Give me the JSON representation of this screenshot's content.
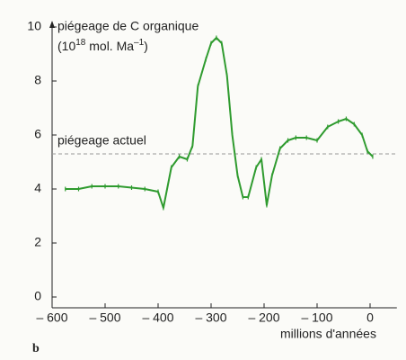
{
  "chart_data": {
    "type": "line",
    "title": "piégeage de C organique",
    "y_unit_parts": [
      "(10",
      "18",
      " mol. Ma",
      "–1",
      ")"
    ],
    "annotation": "piégeage actuel",
    "reference_value": 5.3,
    "xlabel": "millions d'années",
    "panel_label": "b",
    "x": [
      -575,
      -550,
      -525,
      -500,
      -475,
      -450,
      -425,
      -400,
      -390,
      -375,
      -360,
      -345,
      -335,
      -325,
      -310,
      -300,
      -290,
      -280,
      -270,
      -260,
      -250,
      -240,
      -230,
      -215,
      -205,
      -195,
      -185,
      -170,
      -155,
      -140,
      -120,
      -100,
      -80,
      -60,
      -45,
      -30,
      -15,
      -5,
      5
    ],
    "series": [
      {
        "color": "#2f9b2f",
        "values": [
          4.0,
          4.0,
          4.1,
          4.1,
          4.1,
          4.05,
          4.0,
          3.9,
          3.3,
          4.8,
          5.2,
          5.1,
          5.6,
          7.8,
          8.8,
          9.4,
          9.6,
          9.4,
          8.2,
          6.0,
          4.5,
          3.7,
          3.7,
          4.8,
          5.1,
          3.4,
          4.5,
          5.5,
          5.8,
          5.9,
          5.9,
          5.8,
          6.3,
          6.5,
          6.6,
          6.4,
          6.0,
          5.4,
          5.2
        ]
      }
    ],
    "xlim": [
      -600,
      20
    ],
    "ylim": [
      0,
      10
    ],
    "xticks": [
      {
        "value": -600,
        "label": "– 600"
      },
      {
        "value": -500,
        "label": "– 500"
      },
      {
        "value": -400,
        "label": "– 400"
      },
      {
        "value": -300,
        "label": "– 300"
      },
      {
        "value": -200,
        "label": "– 200"
      },
      {
        "value": -100,
        "label": "– 100"
      },
      0
    ],
    "yticks": [
      0,
      2,
      4,
      6,
      8,
      10
    ]
  }
}
